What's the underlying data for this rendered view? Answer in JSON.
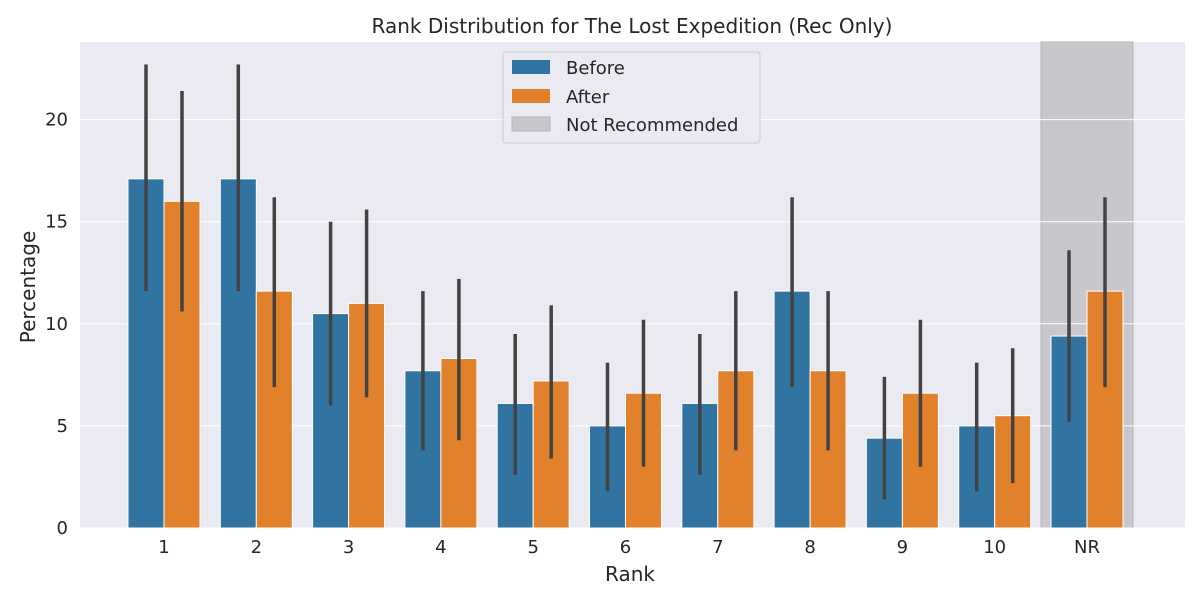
{
  "chart_data": {
    "type": "bar",
    "title": "Rank Distribution for The Lost Expedition (Rec Only)",
    "xlabel": "Rank",
    "ylabel": "Percentage",
    "categories": [
      "1",
      "2",
      "3",
      "4",
      "5",
      "6",
      "7",
      "8",
      "9",
      "10",
      "NR"
    ],
    "ylim": [
      0,
      23.8
    ],
    "yticks": [
      0,
      5,
      10,
      15,
      20
    ],
    "grid": true,
    "legend_position": "top-center",
    "series": [
      {
        "name": "Before",
        "color": "#3274a1",
        "values": [
          17.1,
          17.1,
          10.5,
          7.7,
          6.1,
          5.0,
          6.1,
          11.6,
          4.4,
          5.0,
          9.4
        ],
        "error_low": [
          11.6,
          11.6,
          6.0,
          3.8,
          2.6,
          1.8,
          2.6,
          6.9,
          1.4,
          1.8,
          5.2
        ],
        "error_high": [
          22.7,
          22.7,
          15.0,
          11.6,
          9.5,
          8.1,
          9.5,
          16.2,
          7.4,
          8.1,
          13.6
        ]
      },
      {
        "name": "After",
        "color": "#e1812c",
        "values": [
          16.0,
          11.6,
          11.0,
          8.3,
          7.2,
          6.6,
          7.7,
          7.7,
          6.6,
          5.5,
          11.6
        ],
        "error_low": [
          10.6,
          6.9,
          6.4,
          4.3,
          3.4,
          3.0,
          3.8,
          3.8,
          3.0,
          2.2,
          6.9
        ],
        "error_high": [
          21.4,
          16.2,
          15.6,
          12.2,
          10.9,
          10.2,
          11.6,
          11.6,
          10.2,
          8.8,
          16.2
        ]
      }
    ],
    "shaded_region": {
      "category": "NR",
      "label": "Not Recommended",
      "color": "#c8c8cc"
    },
    "legend": [
      "Before",
      "After",
      "Not Recommended"
    ]
  }
}
